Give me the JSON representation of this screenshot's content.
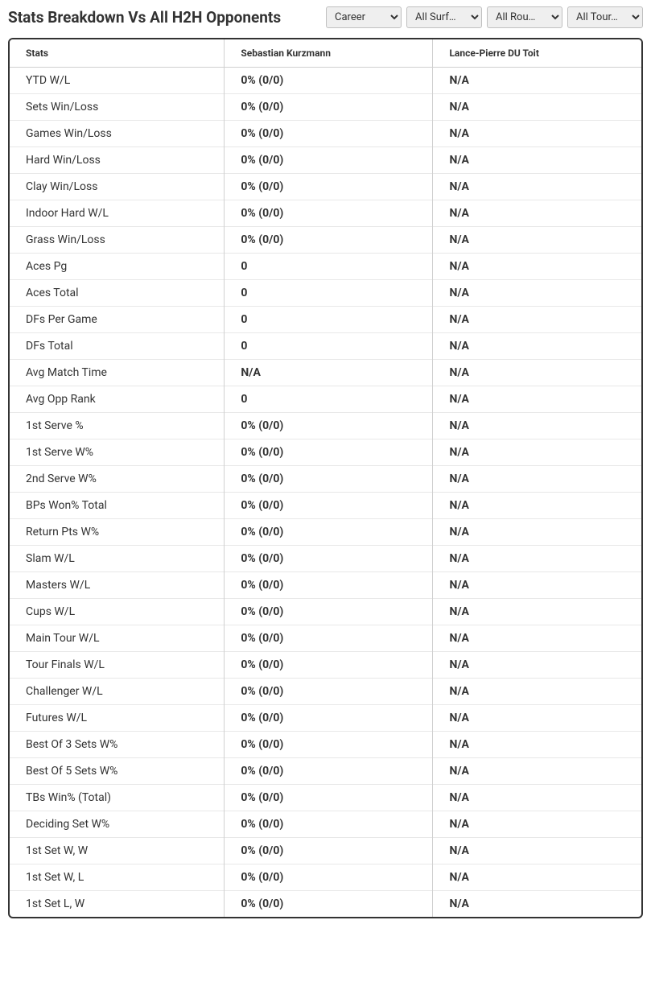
{
  "header": {
    "title": "Stats Breakdown Vs All H2H Opponents"
  },
  "filters": {
    "career": {
      "selected": "Career",
      "options": [
        "Career"
      ]
    },
    "surface": {
      "selected": "All Surf…",
      "options": [
        "All Surf…"
      ]
    },
    "round": {
      "selected": "All Rou…",
      "options": [
        "All Rou…"
      ]
    },
    "tour": {
      "selected": "All Tour…",
      "options": [
        "All Tour…"
      ]
    }
  },
  "table": {
    "headers": {
      "stats": "Stats",
      "player1": "Sebastian Kurzmann",
      "player2": "Lance-Pierre DU Toit"
    },
    "rows": [
      {
        "label": "YTD W/L",
        "p1": "0% (0/0)",
        "p2": "N/A"
      },
      {
        "label": "Sets Win/Loss",
        "p1": "0% (0/0)",
        "p2": "N/A"
      },
      {
        "label": "Games Win/Loss",
        "p1": "0% (0/0)",
        "p2": "N/A"
      },
      {
        "label": "Hard Win/Loss",
        "p1": "0% (0/0)",
        "p2": "N/A"
      },
      {
        "label": "Clay Win/Loss",
        "p1": "0% (0/0)",
        "p2": "N/A"
      },
      {
        "label": "Indoor Hard W/L",
        "p1": "0% (0/0)",
        "p2": "N/A"
      },
      {
        "label": "Grass Win/Loss",
        "p1": "0% (0/0)",
        "p2": "N/A"
      },
      {
        "label": "Aces Pg",
        "p1": "0",
        "p2": "N/A"
      },
      {
        "label": "Aces Total",
        "p1": "0",
        "p2": "N/A"
      },
      {
        "label": "DFs Per Game",
        "p1": "0",
        "p2": "N/A"
      },
      {
        "label": "DFs Total",
        "p1": "0",
        "p2": "N/A"
      },
      {
        "label": "Avg Match Time",
        "p1": "N/A",
        "p2": "N/A"
      },
      {
        "label": "Avg Opp Rank",
        "p1": "0",
        "p2": "N/A"
      },
      {
        "label": "1st Serve %",
        "p1": "0% (0/0)",
        "p2": "N/A"
      },
      {
        "label": "1st Serve W%",
        "p1": "0% (0/0)",
        "p2": "N/A"
      },
      {
        "label": "2nd Serve W%",
        "p1": "0% (0/0)",
        "p2": "N/A"
      },
      {
        "label": "BPs Won% Total",
        "p1": "0% (0/0)",
        "p2": "N/A"
      },
      {
        "label": "Return Pts W%",
        "p1": "0% (0/0)",
        "p2": "N/A"
      },
      {
        "label": "Slam W/L",
        "p1": "0% (0/0)",
        "p2": "N/A"
      },
      {
        "label": "Masters W/L",
        "p1": "0% (0/0)",
        "p2": "N/A"
      },
      {
        "label": "Cups W/L",
        "p1": "0% (0/0)",
        "p2": "N/A"
      },
      {
        "label": "Main Tour W/L",
        "p1": "0% (0/0)",
        "p2": "N/A"
      },
      {
        "label": "Tour Finals W/L",
        "p1": "0% (0/0)",
        "p2": "N/A"
      },
      {
        "label": "Challenger W/L",
        "p1": "0% (0/0)",
        "p2": "N/A"
      },
      {
        "label": "Futures W/L",
        "p1": "0% (0/0)",
        "p2": "N/A"
      },
      {
        "label": "Best Of 3 Sets W%",
        "p1": "0% (0/0)",
        "p2": "N/A"
      },
      {
        "label": "Best Of 5 Sets W%",
        "p1": "0% (0/0)",
        "p2": "N/A"
      },
      {
        "label": "TBs Win% (Total)",
        "p1": "0% (0/0)",
        "p2": "N/A"
      },
      {
        "label": "Deciding Set W%",
        "p1": "0% (0/0)",
        "p2": "N/A"
      },
      {
        "label": "1st Set W, W",
        "p1": "0% (0/0)",
        "p2": "N/A"
      },
      {
        "label": "1st Set W, L",
        "p1": "0% (0/0)",
        "p2": "N/A"
      },
      {
        "label": "1st Set L, W",
        "p1": "0% (0/0)",
        "p2": "N/A"
      }
    ]
  },
  "styling": {
    "title_fontsize": 19,
    "header_fontsize": 12,
    "cell_fontsize": 14,
    "border_color": "#333333",
    "divider_color": "#d0d0d0",
    "row_border_color": "#e8e8e8",
    "text_color": "#333333",
    "background_color": "#ffffff",
    "select_bg": "#efefef",
    "select_border": "#c0c0c0"
  }
}
